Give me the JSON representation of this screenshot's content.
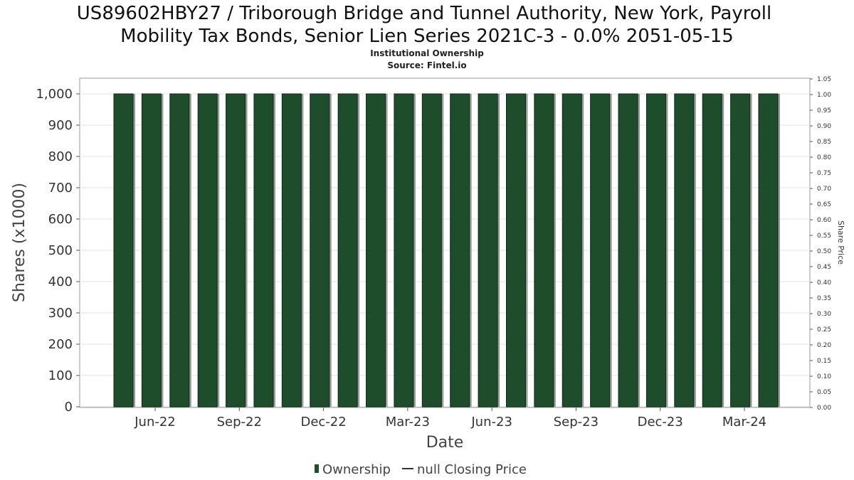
{
  "chart_data": {
    "type": "bar",
    "title_lines": [
      "US89602HBY27 / Triborough Bridge and Tunnel Authority, New York, Payroll",
      "Mobility Tax Bonds, Senior Lien Series 2021C-3 - 0.0% 2051-05-15"
    ],
    "subtitle_lines": [
      "Institutional Ownership",
      "Source: Fintel.io"
    ],
    "xlabel": "Date",
    "ylabel": "Shares (x1000)",
    "y2label": "Share Price",
    "ylim": [
      0,
      1050
    ],
    "y_ticks": [
      0,
      100,
      200,
      300,
      400,
      500,
      600,
      700,
      800,
      900,
      1000
    ],
    "y_tick_labels": [
      "0",
      "100",
      "200",
      "300",
      "400",
      "500",
      "600",
      "700",
      "800",
      "900",
      "1,000"
    ],
    "y2lim": [
      0,
      1.05
    ],
    "y2_ticks": [
      0,
      0.05,
      0.1,
      0.15,
      0.2,
      0.25,
      0.3,
      0.35,
      0.4,
      0.45,
      0.5,
      0.55,
      0.6,
      0.65,
      0.7,
      0.75,
      0.8,
      0.85,
      0.9,
      0.95,
      1.0,
      1.05
    ],
    "y2_tick_labels": [
      "0.00",
      "0.05",
      "0.10",
      "0.15",
      "0.20",
      "0.25",
      "0.30",
      "0.35",
      "0.40",
      "0.45",
      "0.50",
      "0.55",
      "0.60",
      "0.65",
      "0.70",
      "0.75",
      "0.80",
      "0.85",
      "0.90",
      "0.95",
      "1.00",
      "1.05"
    ],
    "x_tick_labels": [
      "Jun-22",
      "Sep-22",
      "Dec-22",
      "Mar-23",
      "Jun-23",
      "Sep-23",
      "Dec-23",
      "Mar-24"
    ],
    "series": [
      {
        "name": "Ownership",
        "color": "#1e4d2b",
        "values": [
          1000,
          1000,
          1000,
          1000,
          1000,
          1000,
          1000,
          1000,
          1000,
          1000,
          1000,
          1000,
          1000,
          1000,
          1000,
          1000,
          1000,
          1000,
          1000,
          1000,
          1000,
          1000,
          1000,
          1000
        ]
      }
    ],
    "legend": {
      "position": "bottom",
      "items": [
        {
          "label": "Ownership",
          "symbol": "bar",
          "color": "#1e4d2b"
        },
        {
          "label": "null Closing Price",
          "symbol": "line",
          "color": "#333333"
        }
      ]
    },
    "grid": true
  }
}
